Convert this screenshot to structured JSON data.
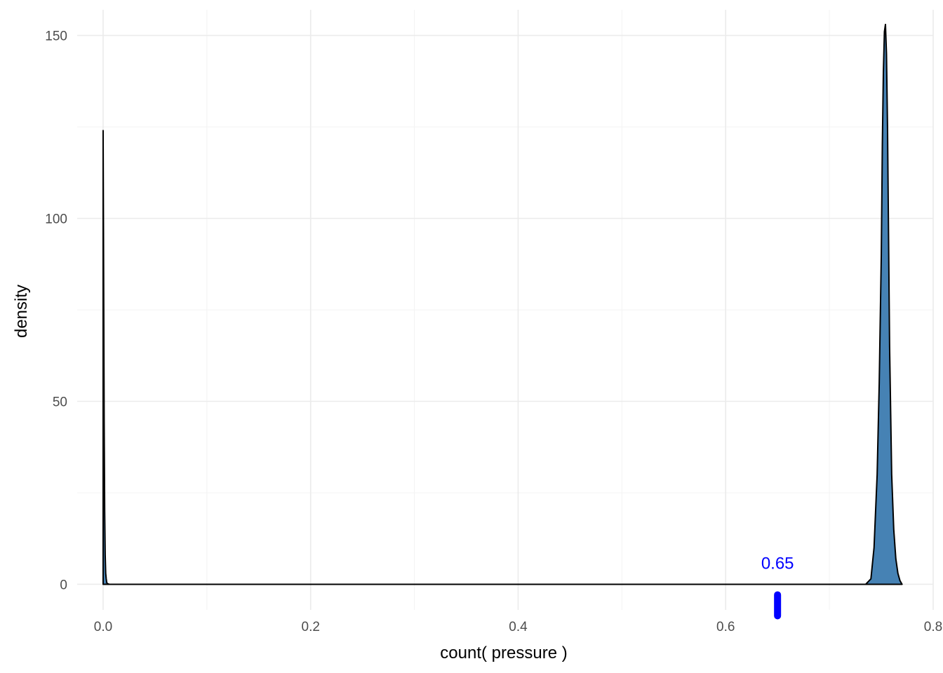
{
  "chart_data": {
    "type": "area",
    "xlabel": "count( pressure )",
    "ylabel": "density",
    "xlim": [
      -0.025,
      0.8
    ],
    "ylim": [
      -7,
      157
    ],
    "x_ticks": [
      0.0,
      0.2,
      0.4,
      0.6,
      0.8
    ],
    "x_tick_labels": [
      "0.0",
      "0.2",
      "0.4",
      "0.6",
      "0.8"
    ],
    "y_ticks": [
      0,
      50,
      100,
      150
    ],
    "y_tick_labels": [
      "0",
      "50",
      "100",
      "150"
    ],
    "grid": true,
    "fill_color": "#4682b4",
    "series": [
      {
        "x": [
          0.0,
          0.0005,
          0.001,
          0.0015,
          0.002,
          0.0025,
          0.003,
          0.0035,
          0.004,
          0.006,
          0.01,
          0.1,
          0.3,
          0.5,
          0.7,
          0.735,
          0.74,
          0.743,
          0.746,
          0.748,
          0.75,
          0.751,
          0.752,
          0.753,
          0.754,
          0.755,
          0.756,
          0.757,
          0.758,
          0.76,
          0.762,
          0.764,
          0.766,
          0.768,
          0.769,
          0.77
        ],
        "y": [
          124,
          85,
          45,
          20,
          8,
          3,
          1.5,
          0.5,
          0.2,
          0,
          0,
          0,
          0,
          0,
          0,
          0,
          1.5,
          10,
          30,
          55,
          90,
          120,
          140,
          151,
          153,
          145,
          125,
          95,
          65,
          30,
          15,
          7,
          3,
          1,
          0.5,
          0
        ]
      }
    ],
    "annotations": [
      {
        "text": "0.65",
        "x": 0.65,
        "color": "#0000ff"
      }
    ]
  }
}
